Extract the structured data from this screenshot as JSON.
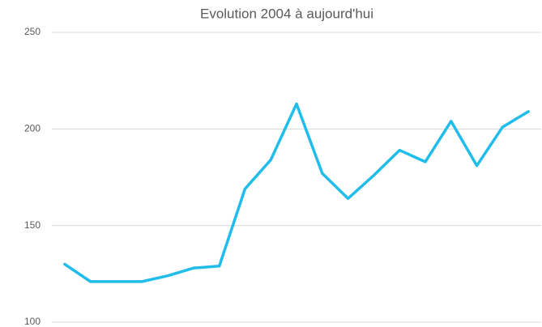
{
  "chart_data": {
    "type": "line",
    "title": "Evolution 2004 à aujourd'hui",
    "series": [
      {
        "color": "#21bdea",
        "values": [
          130,
          121,
          121,
          121,
          124,
          128,
          129,
          169,
          184,
          213,
          177,
          164,
          176,
          189,
          183,
          204,
          181,
          201,
          209
        ]
      }
    ],
    "ylim": [
      100,
      250
    ],
    "yticks": [
      100,
      150,
      200,
      250
    ],
    "grid": true
  }
}
